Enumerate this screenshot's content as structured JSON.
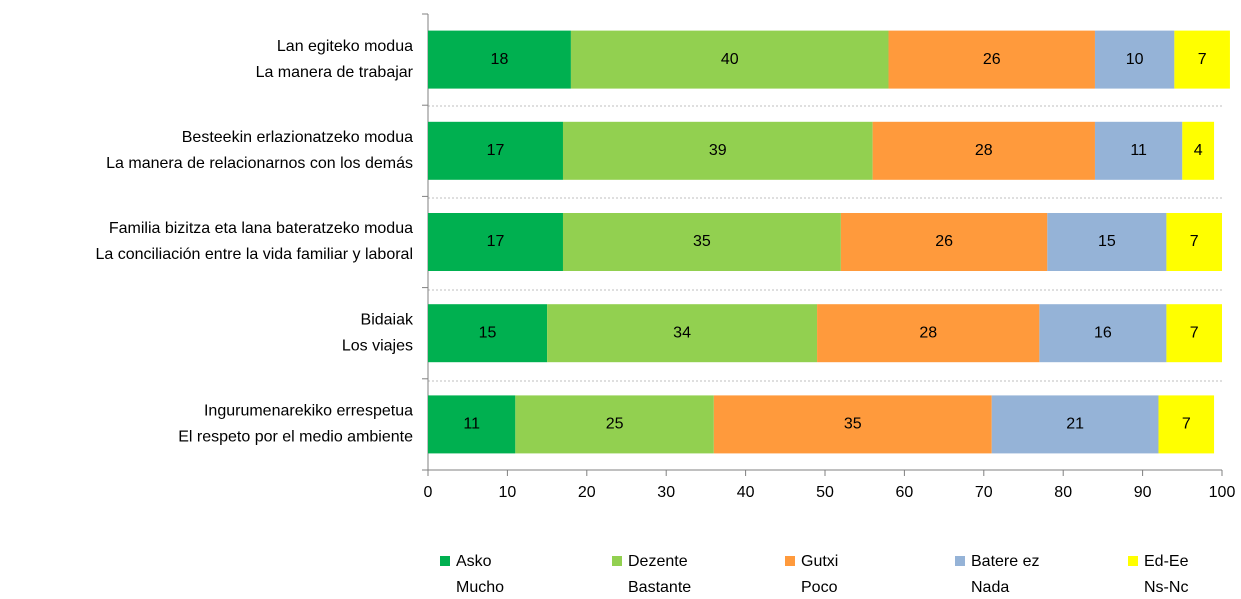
{
  "chart_data": {
    "type": "stacked-barh",
    "categories": [
      [
        "Lan egiteko modua",
        "La manera de trabajar"
      ],
      [
        "Besteekin erlazionatzeko modua",
        "La manera de relacionarnos con los demás"
      ],
      [
        "Familia bizitza eta lana bateratzeko modua",
        "La conciliación entre la vida familiar y laboral"
      ],
      [
        "Bidaiak",
        "Los viajes"
      ],
      [
        "Ingurumenarekiko errespetua",
        "El respeto por el medio ambiente"
      ]
    ],
    "series": [
      {
        "name": [
          "Asko",
          "Mucho"
        ],
        "color": "#00b050",
        "values": [
          18,
          17,
          17,
          15,
          11
        ]
      },
      {
        "name": [
          "Dezente",
          "Bastante"
        ],
        "color": "#92d050",
        "values": [
          40,
          39,
          35,
          34,
          25
        ]
      },
      {
        "name": [
          "Gutxi",
          "Poco"
        ],
        "color": "#ff9a3c",
        "values": [
          26,
          28,
          26,
          28,
          35
        ]
      },
      {
        "name": [
          "Batere ez",
          "Nada"
        ],
        "color": "#95b3d7",
        "values": [
          10,
          11,
          15,
          16,
          21
        ]
      },
      {
        "name": [
          "Ed-Ee",
          "Ns-Nc"
        ],
        "color": "#ffff00",
        "values": [
          7,
          4,
          7,
          7,
          7
        ]
      }
    ],
    "xlim": [
      0,
      100
    ],
    "xticks": [
      0,
      10,
      20,
      30,
      40,
      50,
      60,
      70,
      80,
      90,
      100
    ],
    "legend": "bottom"
  }
}
